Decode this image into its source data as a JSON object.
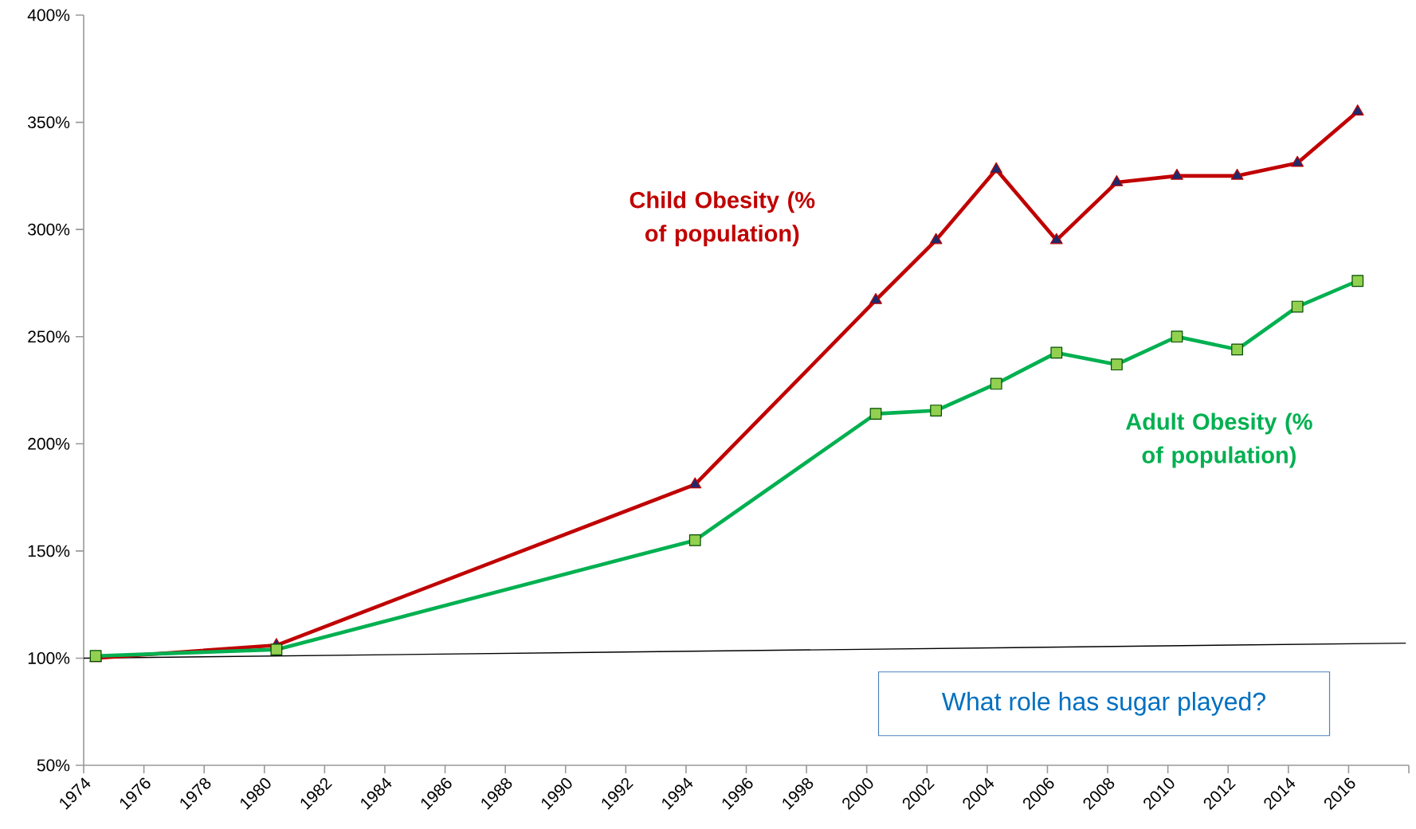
{
  "chart_data": {
    "type": "line",
    "xlim": [
      1974,
      2018
    ],
    "xticks": [
      1974,
      1976,
      1978,
      1980,
      1982,
      1984,
      1986,
      1988,
      1990,
      1992,
      1994,
      1996,
      1998,
      2000,
      2002,
      2004,
      2006,
      2008,
      2010,
      2012,
      2014,
      2016,
      {
        "value": 2018,
        "label": null
      }
    ],
    "ylim": [
      50,
      400
    ],
    "yticks": [
      {
        "value": 50,
        "label": "50%"
      },
      {
        "value": 100,
        "label": "100%"
      },
      {
        "value": 150,
        "label": "150%"
      },
      {
        "value": 200,
        "label": "200%"
      },
      {
        "value": 250,
        "label": "250%"
      },
      {
        "value": 300,
        "label": "300%"
      },
      {
        "value": 350,
        "label": "350%"
      },
      {
        "value": 400,
        "label": "400%"
      }
    ],
    "grid": false,
    "line_style": "solid",
    "series": [
      {
        "color": "#000000",
        "marker": "none",
        "x": [
          1974,
          2017.9
        ],
        "values": [
          100,
          107
        ]
      },
      {
        "name": "Child Obesity (% of population)",
        "color": "#c00000",
        "marker": "triangle",
        "x": [
          1974.4,
          1980.4,
          1994.3,
          2000.3,
          2002.3,
          2004.3,
          2006.3,
          2008.3,
          2010.3,
          2012.3,
          2014.3,
          2016.3
        ],
        "values": [
          100,
          106,
          181,
          267,
          295,
          328,
          295,
          322,
          325,
          325,
          331,
          355
        ]
      },
      {
        "name": "Adult Obesity (% of population)",
        "color": "#00b050",
        "marker": "square",
        "x": [
          1974.4,
          1980.4,
          1994.3,
          2000.3,
          2002.3,
          2004.3,
          2006.3,
          2008.3,
          2010.3,
          2012.3,
          2014.3,
          2016.3
        ],
        "values": [
          101,
          104,
          155,
          214,
          215.5,
          228,
          242.5,
          237,
          250,
          244,
          264,
          276
        ]
      }
    ],
    "annotations": [
      "What role has sugar played?"
    ]
  }
}
